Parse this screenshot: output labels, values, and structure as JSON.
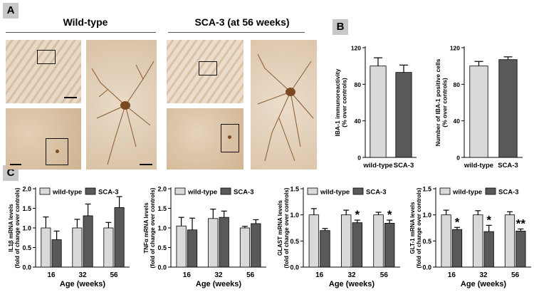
{
  "panel_labels": {
    "a": "A",
    "b": "B",
    "c": "C"
  },
  "groups": {
    "wild_type": "Wild-type",
    "sca3": "SCA-3 (at 56 weeks)"
  },
  "colors": {
    "wild_type_bar": "#d9d9d9",
    "sca3_bar": "#595959",
    "tissue_bg": "#d9c2a6",
    "cell_stain": "#7a4a22",
    "letter_bg": "#c8c8c8"
  },
  "chart_data": [
    {
      "type": "bar",
      "panel": "B-left",
      "categories": [
        "wild-type",
        "SCA-3"
      ],
      "values": [
        100,
        93
      ],
      "errors": [
        9,
        8
      ],
      "ylabel": "IBA-1 immunoreactivity\n(% over controls)",
      "yticks": [
        0,
        40,
        80,
        120
      ],
      "ylim": [
        0,
        120
      ]
    },
    {
      "type": "bar",
      "panel": "B-right",
      "categories": [
        "wild-type",
        "SCA-3"
      ],
      "values": [
        100,
        107
      ],
      "errors": [
        5,
        3
      ],
      "ylabel": "Number of IBA-1 positive cells\n(% over controls)",
      "yticks": [
        0,
        40,
        80,
        120
      ],
      "ylim": [
        0,
        120
      ]
    },
    {
      "type": "bar",
      "panel": "C-1",
      "categories": [
        "16",
        "32",
        "56"
      ],
      "series": [
        {
          "name": "wild-type",
          "values": [
            1.0,
            1.0,
            1.0
          ],
          "errors": [
            0.28,
            0.22,
            0.14
          ]
        },
        {
          "name": "SCA-3",
          "values": [
            0.7,
            1.31,
            1.52
          ],
          "errors": [
            0.22,
            0.3,
            0.28
          ]
        }
      ],
      "xlabel": "Age (weeks)",
      "ylabel": "IL1β mRNA levels\n(fold of change over controls)",
      "yticks": [
        "0.0",
        "0.5",
        "1.0",
        "1.5",
        "2.0"
      ],
      "ylim": [
        0,
        2
      ],
      "significance": [
        "",
        "",
        ""
      ]
    },
    {
      "type": "bar",
      "panel": "C-2",
      "categories": [
        "16",
        "32",
        "56"
      ],
      "series": [
        {
          "name": "wild-type",
          "values": [
            1.05,
            1.24,
            1.0
          ],
          "errors": [
            0.22,
            0.24,
            0.04
          ]
        },
        {
          "name": "SCA-3",
          "values": [
            0.95,
            1.27,
            1.11
          ],
          "errors": [
            0.3,
            0.16,
            0.1
          ]
        }
      ],
      "xlabel": "Age (weeks)",
      "ylabel": "TNFα mRNA levels\n(fold of change over controls)",
      "yticks": [
        "0.0",
        "0.5",
        "1.0",
        "1.5",
        "2.0"
      ],
      "ylim": [
        0,
        2
      ],
      "significance": [
        "",
        "",
        ""
      ]
    },
    {
      "type": "bar",
      "panel": "C-3",
      "categories": [
        "16",
        "32",
        "56"
      ],
      "series": [
        {
          "name": "wild-type",
          "values": [
            1.0,
            1.0,
            1.0
          ],
          "errors": [
            0.12,
            0.09,
            0.05
          ]
        },
        {
          "name": "SCA-3",
          "values": [
            0.7,
            0.85,
            0.84
          ],
          "errors": [
            0.04,
            0.05,
            0.06
          ]
        }
      ],
      "xlabel": "Age (weeks)",
      "ylabel": "GLAST mRNA levels\n(fold of change over controls)",
      "yticks": [
        "0.0",
        "0.5",
        "1.0",
        "1.5"
      ],
      "ylim": [
        0,
        1.5
      ],
      "significance": [
        "",
        "*",
        "*"
      ]
    },
    {
      "type": "bar",
      "panel": "C-4",
      "categories": [
        "16",
        "32",
        "56"
      ],
      "series": [
        {
          "name": "wild-type",
          "values": [
            1.0,
            1.0,
            1.0
          ],
          "errors": [
            0.09,
            0.08,
            0.06
          ]
        },
        {
          "name": "SCA-3",
          "values": [
            0.72,
            0.68,
            0.69
          ],
          "errors": [
            0.04,
            0.12,
            0.04
          ]
        }
      ],
      "xlabel": "Age (weeks)",
      "ylabel": "GLT-1 mRNA levels\n(fold of change over controls)",
      "yticks": [
        "0.0",
        "0.5",
        "1.0",
        "1.5"
      ],
      "ylim": [
        0,
        1.5
      ],
      "significance": [
        "*",
        "*",
        "**"
      ]
    }
  ]
}
